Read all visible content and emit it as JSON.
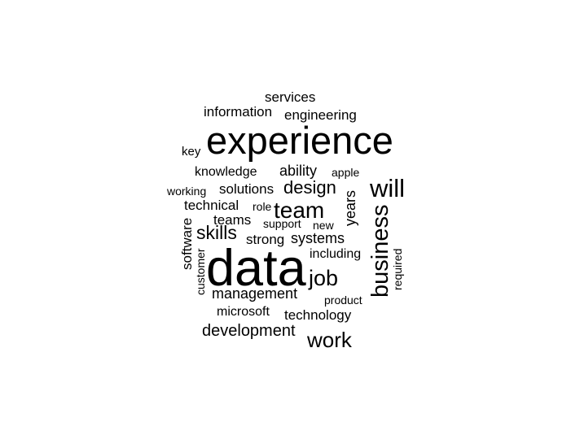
{
  "word_cloud": {
    "text_color": "#000000",
    "background_color": "#ffffff",
    "words": [
      "services",
      "information",
      "engineering",
      "experience",
      "key",
      "knowledge",
      "ability",
      "apple",
      "working",
      "solutions",
      "design",
      "will",
      "technical",
      "role",
      "team",
      "years",
      "teams",
      "support",
      "new",
      "software",
      "skills",
      "strong",
      "systems",
      "business",
      "customer",
      "data",
      "including",
      "required",
      "job",
      "management",
      "product",
      "microsoft",
      "technology",
      "development",
      "work"
    ]
  }
}
